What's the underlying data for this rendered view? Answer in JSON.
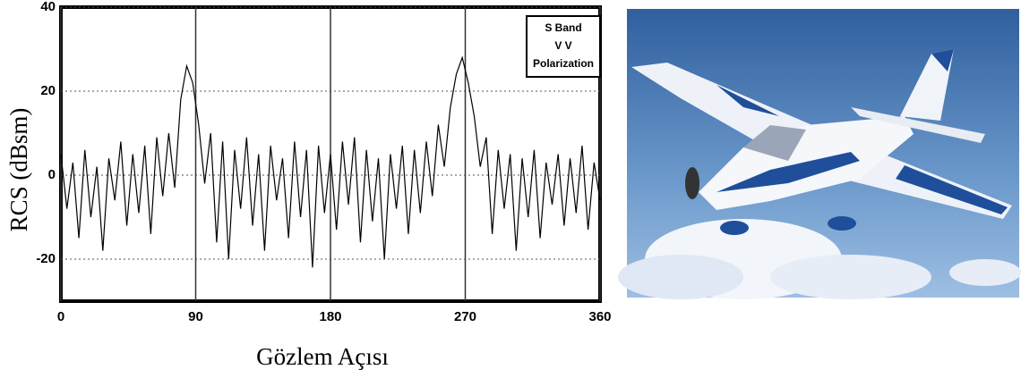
{
  "chart_data": {
    "type": "line",
    "y_label": "RCS (dBsm)",
    "x_label": "Gözlem Açısı",
    "annotation": [
      "S Band",
      "V V",
      "Polarization"
    ],
    "xlim": [
      0,
      360
    ],
    "ylim": [
      -30,
      40
    ],
    "xticks": [
      0,
      90,
      180,
      270,
      360
    ],
    "yticks": [
      -20,
      0,
      20,
      40
    ],
    "grid": true,
    "series": [
      {
        "color": "#000000",
        "x": [
          0,
          4,
          8,
          12,
          16,
          20,
          24,
          28,
          32,
          36,
          40,
          44,
          48,
          52,
          56,
          60,
          64,
          68,
          72,
          76,
          80,
          84,
          88,
          92,
          96,
          100,
          104,
          108,
          112,
          116,
          120,
          124,
          128,
          132,
          136,
          140,
          144,
          148,
          152,
          156,
          160,
          164,
          168,
          172,
          176,
          180,
          184,
          188,
          192,
          196,
          200,
          204,
          208,
          212,
          216,
          220,
          224,
          228,
          232,
          236,
          240,
          244,
          248,
          252,
          256,
          260,
          264,
          268,
          272,
          276,
          280,
          284,
          288,
          292,
          296,
          300,
          304,
          308,
          312,
          316,
          320,
          324,
          328,
          332,
          336,
          340,
          344,
          348,
          352,
          356,
          360
        ],
        "values": [
          5,
          -8,
          3,
          -15,
          6,
          -10,
          2,
          -18,
          4,
          -6,
          8,
          -12,
          5,
          -9,
          7,
          -14,
          9,
          -5,
          10,
          -3,
          18,
          26,
          22,
          12,
          -2,
          10,
          -16,
          8,
          -20,
          6,
          -8,
          9,
          -12,
          5,
          -18,
          7,
          -6,
          4,
          -15,
          8,
          -10,
          6,
          -22,
          7,
          -9,
          5,
          -13,
          8,
          -7,
          9,
          -16,
          6,
          -11,
          4,
          -20,
          5,
          -8,
          7,
          -14,
          6,
          -9,
          8,
          -5,
          12,
          2,
          16,
          24,
          28,
          22,
          14,
          2,
          9,
          -14,
          6,
          -8,
          5,
          -18,
          4,
          -10,
          6,
          -15,
          3,
          -7,
          5,
          -12,
          4,
          -9,
          7,
          -13,
          3,
          -6
        ]
      }
    ]
  }
}
